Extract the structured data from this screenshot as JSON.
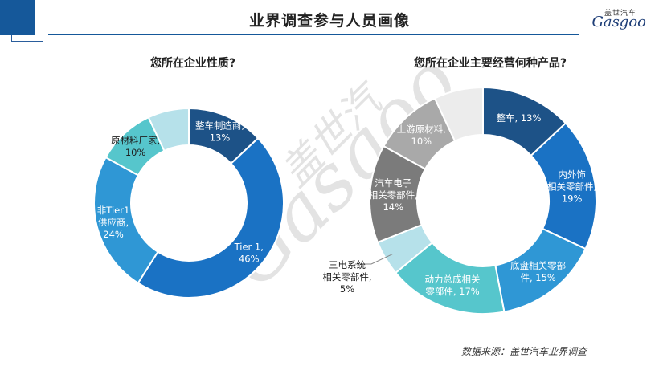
{
  "header": {
    "title": "业界调查参与人员画像",
    "logo_cn": "盖世汽车",
    "logo_en": "Gasgoo"
  },
  "watermark": {
    "cn": "盖世汽",
    "en": "Gasgoo"
  },
  "footer": {
    "source": "数据来源：盖世汽车业界调查"
  },
  "chart_data": [
    {
      "type": "pie",
      "donut": true,
      "title": "您所在企业性质?",
      "slices": [
        {
          "label": "整车制造商,\n13%",
          "value": 13,
          "color": "#1d5287",
          "label_color": "#ffffff"
        },
        {
          "label": "Tier 1,\n46%",
          "value": 46,
          "color": "#1a72c4",
          "label_color": "#ffffff"
        },
        {
          "label": "非Tier1\n供应商,\n24%",
          "value": 24,
          "color": "#2f97d5",
          "label_color": "#ffffff"
        },
        {
          "label": "原材料厂家,\n10%",
          "value": 10,
          "color": "#56c6cc",
          "label_color": "#1f1f1f"
        },
        {
          "label": "",
          "value": 7,
          "color": "#b6e1ea",
          "label_color": "#1f1f1f"
        }
      ]
    },
    {
      "type": "pie",
      "donut": true,
      "title": "您所在企业主要经营何种产品?",
      "slices": [
        {
          "label": "整车, 13%",
          "value": 13,
          "color": "#1d5287",
          "label_color": "#ffffff"
        },
        {
          "label": "内外饰\n相关零部件,\n19%",
          "value": 19,
          "color": "#1a72c4",
          "label_color": "#ffffff"
        },
        {
          "label": "底盘相关零部\n件, 15%",
          "value": 15,
          "color": "#2f97d5",
          "label_color": "#ffffff"
        },
        {
          "label": "动力总成相关\n零部件, 17%",
          "value": 17,
          "color": "#56c6cc",
          "label_color": "#ffffff"
        },
        {
          "label": "三电系统\n相关零部件,\n5%",
          "value": 5,
          "color": "#b6e1ea",
          "label_color": "#1f1f1f"
        },
        {
          "label": "汽车电子\n相关零部件,\n14%",
          "value": 14,
          "color": "#7b7b7b",
          "label_color": "#ffffff"
        },
        {
          "label": "上游原材料,\n10%",
          "value": 10,
          "color": "#a9a9a9",
          "label_color": "#ffffff"
        },
        {
          "label": "",
          "value": 7,
          "color": "#ececec",
          "label_color": "#1f1f1f"
        }
      ]
    }
  ]
}
